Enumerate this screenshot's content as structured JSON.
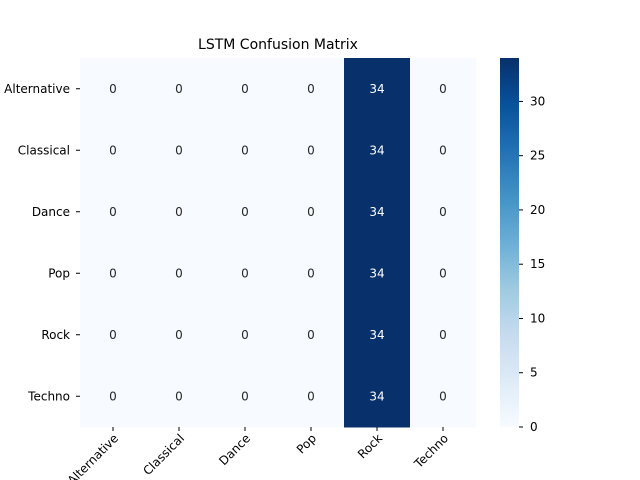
{
  "chart_data": {
    "type": "heatmap",
    "title": "LSTM Confusion Matrix",
    "xlabel": "",
    "ylabel": "",
    "row_labels": [
      "Alternative",
      "Classical",
      "Dance",
      "Pop",
      "Rock",
      "Techno"
    ],
    "col_labels": [
      "Alternative",
      "Classical",
      "Dance",
      "Pop",
      "Rock",
      "Techno"
    ],
    "values": [
      [
        0,
        0,
        0,
        0,
        34,
        0
      ],
      [
        0,
        0,
        0,
        0,
        34,
        0
      ],
      [
        0,
        0,
        0,
        0,
        34,
        0
      ],
      [
        0,
        0,
        0,
        0,
        34,
        0
      ],
      [
        0,
        0,
        0,
        0,
        34,
        0
      ],
      [
        0,
        0,
        0,
        0,
        34,
        0
      ]
    ],
    "colorbar": {
      "min": 0,
      "max": 34,
      "ticks": [
        0,
        5,
        10,
        15,
        20,
        25,
        30
      ]
    },
    "colormap": "Blues",
    "low_color": "#f7fbff",
    "high_color": "#08306b",
    "annotation_light_color": "#ffffff",
    "annotation_dark_color": "#262626"
  }
}
